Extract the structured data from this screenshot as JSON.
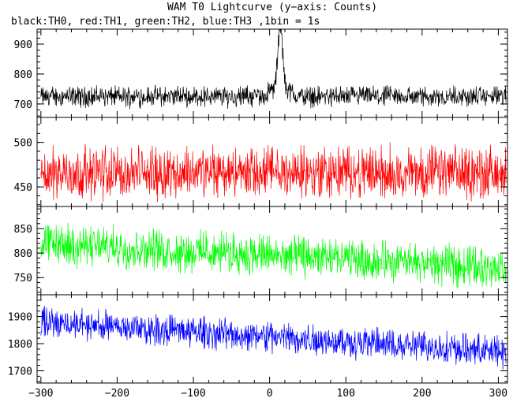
{
  "title": "WAM T0 Lightcurve (y−axis: Counts)",
  "subtitle": "black:TH0, red:TH1, green:TH2, blue:TH3 ,1bin = 1s",
  "chart_data": [
    {
      "type": "line",
      "name": "TH0",
      "color": "#000000",
      "xlim": [
        -305,
        312
      ],
      "ylim": [
        655,
        950
      ],
      "yticks": [
        700,
        800,
        900
      ],
      "yminor_step": 20,
      "x_range": [
        -300,
        310
      ],
      "baseline": 725,
      "noise_halfwidth": 30,
      "trend_per_100s": 0,
      "burst": {
        "t0": 14,
        "peak": 945,
        "width_s": 4
      }
    },
    {
      "type": "line",
      "name": "TH1",
      "color": "#ff0000",
      "xlim": [
        -305,
        312
      ],
      "ylim": [
        428,
        528
      ],
      "yticks": [
        450,
        500
      ],
      "yminor_step": 10,
      "x_range": [
        -300,
        310
      ],
      "baseline": 466,
      "noise_halfwidth": 25,
      "trend_per_100s": 0
    },
    {
      "type": "line",
      "name": "TH2",
      "color": "#00ff00",
      "xlim": [
        -305,
        312
      ],
      "ylim": [
        715,
        895
      ],
      "yticks": [
        750,
        800,
        850
      ],
      "yminor_step": 10,
      "x_range": [
        -300,
        310
      ],
      "baseline": 795,
      "noise_halfwidth": 35,
      "trend_per_100s": -8
    },
    {
      "type": "line",
      "name": "TH3",
      "color": "#0000ff",
      "xlim": [
        -305,
        312
      ],
      "ylim": [
        1655,
        1980
      ],
      "yticks": [
        1700,
        1800,
        1900
      ],
      "yminor_step": 20,
      "x_range": [
        -300,
        310
      ],
      "baseline": 1825,
      "noise_halfwidth": 50,
      "trend_per_100s": -18
    }
  ],
  "x_axis": {
    "ticks": [
      -300,
      -200,
      -100,
      0,
      100,
      200,
      300
    ],
    "tick_labels": [
      "−300",
      "−200",
      "−100",
      "0",
      "100",
      "200",
      "300"
    ],
    "minor_step": 20
  }
}
